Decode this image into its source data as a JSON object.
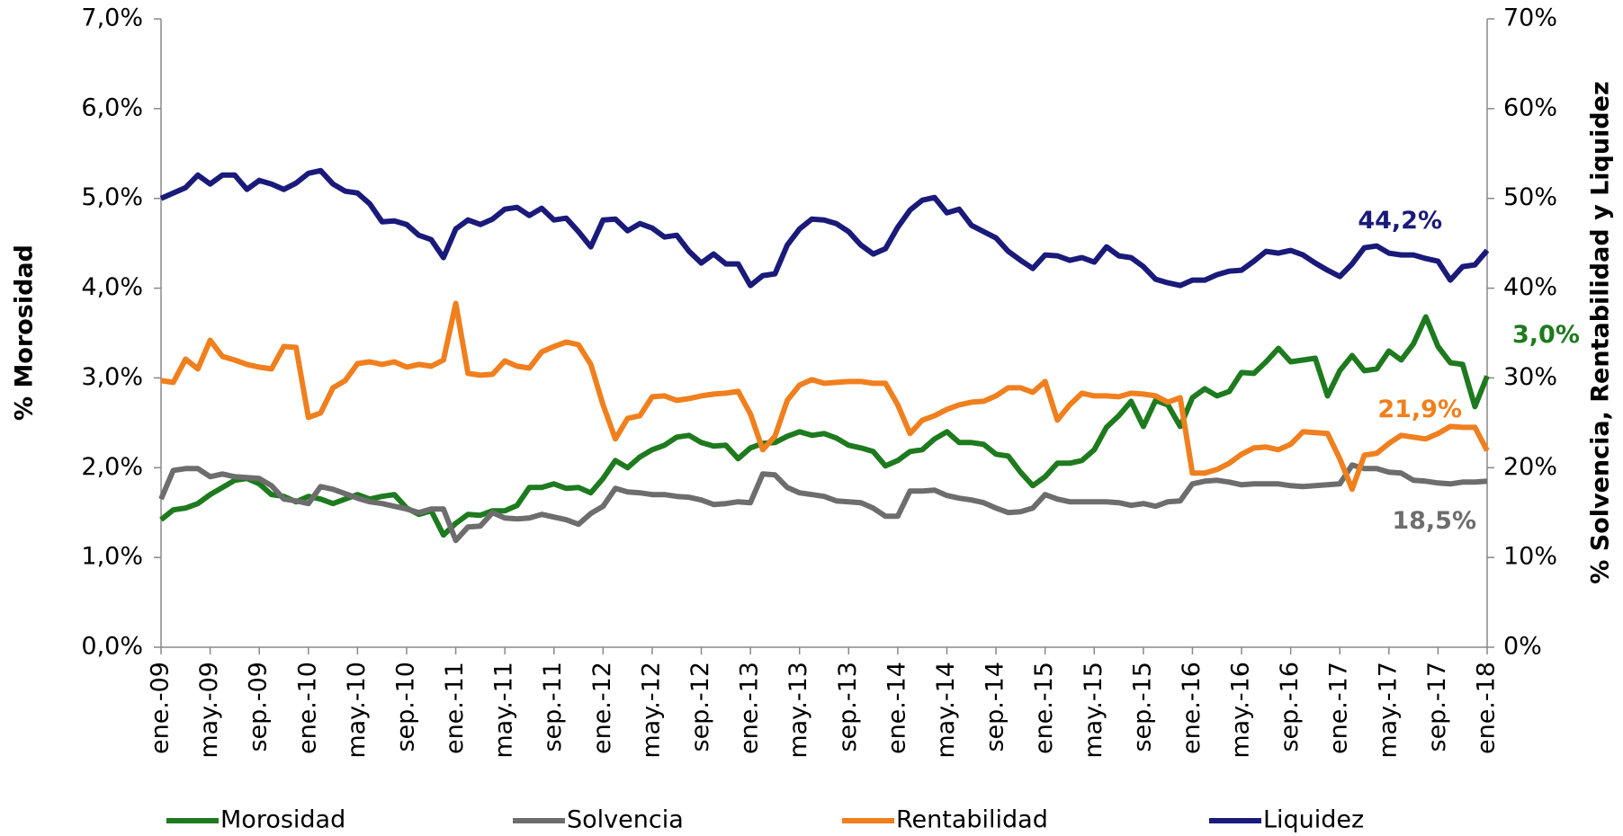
{
  "chart_data": {
    "type": "line",
    "y_label": "% Morosidad",
    "y2_label": "% Solvencia, Rentabilidad  y Liquidez",
    "categories": [
      "ene.-09",
      null,
      null,
      null,
      "may.-09",
      null,
      null,
      null,
      "sep.-09",
      null,
      null,
      null,
      "ene.-10",
      null,
      null,
      null,
      "may.-10",
      null,
      null,
      null,
      "sep.-10",
      null,
      null,
      null,
      "ene.-11",
      null,
      null,
      null,
      "may.-11",
      null,
      null,
      null,
      "sep.-11",
      null,
      null,
      null,
      "ene.-12",
      null,
      null,
      null,
      "may.-12",
      null,
      null,
      null,
      "sep.-12",
      null,
      null,
      null,
      "ene.-13",
      null,
      null,
      null,
      "may.-13",
      null,
      null,
      null,
      "sep.-13",
      null,
      null,
      null,
      "ene.-14",
      null,
      null,
      null,
      "may.-14",
      null,
      null,
      null,
      "sep.-14",
      null,
      null,
      null,
      "ene.-15",
      null,
      null,
      null,
      "may.-15",
      null,
      null,
      null,
      "sep.-15",
      null,
      null,
      null,
      "ene.-16",
      null,
      null,
      null,
      "may.-16",
      null,
      null,
      null,
      "sep.-16",
      null,
      null,
      null,
      "ene.-17",
      null,
      null,
      null,
      "may.-17",
      null,
      null,
      null,
      "sep.-17",
      null,
      null,
      null,
      "ene.-18"
    ],
    "ylim": [
      0,
      7
    ],
    "yticks": [
      {
        "value": 0,
        "label": "0,0%"
      },
      {
        "value": 1,
        "label": "1,0%"
      },
      {
        "value": 2,
        "label": "2,0%"
      },
      {
        "value": 3,
        "label": "3,0%"
      },
      {
        "value": 4,
        "label": "4,0%"
      },
      {
        "value": 5,
        "label": "5,0%"
      },
      {
        "value": 6,
        "label": "6,0%"
      },
      {
        "value": 7,
        "label": "7,0%"
      }
    ],
    "y2lim": [
      0,
      70
    ],
    "y2ticks": [
      {
        "value": 0,
        "label": "0%"
      },
      {
        "value": 10,
        "label": "10%"
      },
      {
        "value": 20,
        "label": "20%"
      },
      {
        "value": 30,
        "label": "30%"
      },
      {
        "value": 40,
        "label": "40%"
      },
      {
        "value": 50,
        "label": "50%"
      },
      {
        "value": 60,
        "label": "60%"
      },
      {
        "value": 70,
        "label": "70%"
      }
    ],
    "grid": false,
    "legend": "bottom",
    "series": [
      {
        "name": "Morosidad",
        "color": "#1e7a1e",
        "axis": "y",
        "values": [
          1.42,
          1.53,
          1.55,
          1.6,
          1.7,
          1.78,
          1.86,
          1.88,
          1.82,
          1.7,
          1.68,
          1.62,
          1.68,
          1.65,
          1.6,
          1.65,
          1.7,
          1.65,
          1.68,
          1.7,
          1.55,
          1.48,
          1.52,
          1.25,
          1.38,
          1.48,
          1.47,
          1.52,
          1.52,
          1.58,
          1.78,
          1.78,
          1.82,
          1.77,
          1.78,
          1.72,
          1.88,
          2.08,
          2.0,
          2.12,
          2.2,
          2.25,
          2.34,
          2.36,
          2.28,
          2.24,
          2.25,
          2.1,
          2.22,
          2.27,
          2.28,
          2.35,
          2.4,
          2.36,
          2.38,
          2.33,
          2.25,
          2.22,
          2.18,
          2.02,
          2.08,
          2.18,
          2.2,
          2.32,
          2.4,
          2.28,
          2.28,
          2.26,
          2.15,
          2.13,
          1.95,
          1.8,
          1.9,
          2.05,
          2.05,
          2.08,
          2.2,
          2.45,
          2.58,
          2.74,
          2.46,
          2.75,
          2.7,
          2.46,
          2.78,
          2.88,
          2.8,
          2.85,
          3.06,
          3.05,
          3.18,
          3.33,
          3.18,
          3.2,
          3.22,
          2.8,
          3.08,
          3.25,
          3.08,
          3.1,
          3.3,
          3.2,
          3.38,
          3.68,
          3.35,
          3.17,
          3.15,
          2.68,
          3.02
        ],
        "value_labels": [
          null,
          null,
          null,
          null,
          null,
          null,
          null,
          null,
          null,
          null,
          null,
          null,
          null,
          null,
          null,
          null,
          null,
          null,
          null,
          null,
          null,
          null,
          null,
          null,
          null,
          null,
          null,
          null,
          null,
          null,
          null,
          null,
          null,
          null,
          null,
          null,
          null,
          null,
          null,
          null,
          null,
          null,
          null,
          null,
          null,
          null,
          null,
          null,
          null,
          null,
          null,
          null,
          null,
          null,
          null,
          null,
          null,
          null,
          null,
          null,
          null,
          null,
          null,
          null,
          null,
          null,
          null,
          null,
          null,
          null,
          null,
          null,
          null,
          null,
          null,
          null,
          null,
          null,
          null,
          null,
          null,
          null,
          null,
          null,
          null,
          null,
          null,
          null,
          null,
          null,
          null,
          null,
          null,
          null,
          null,
          null,
          null,
          null,
          null,
          null,
          null,
          null,
          null,
          null,
          null,
          null,
          null,
          null,
          "3,0%"
        ]
      },
      {
        "name": "Solvencia",
        "color": "#6d6d6d",
        "axis": "y2",
        "values": [
          16.5,
          19.7,
          19.9,
          19.9,
          19.0,
          19.3,
          19.0,
          18.9,
          18.8,
          18.0,
          16.5,
          16.3,
          16.0,
          17.9,
          17.6,
          17.1,
          16.6,
          16.2,
          16.0,
          15.7,
          15.4,
          15.0,
          15.4,
          15.4,
          11.9,
          13.4,
          13.5,
          15.0,
          14.4,
          14.3,
          14.4,
          14.8,
          14.5,
          14.2,
          13.7,
          14.9,
          15.7,
          17.7,
          17.3,
          17.2,
          17.0,
          17.0,
          16.8,
          16.7,
          16.4,
          15.9,
          16.0,
          16.2,
          16.1,
          19.3,
          19.2,
          17.8,
          17.2,
          17.0,
          16.8,
          16.3,
          16.2,
          16.1,
          15.5,
          14.6,
          14.6,
          17.4,
          17.4,
          17.5,
          16.9,
          16.6,
          16.4,
          16.1,
          15.5,
          15.0,
          15.1,
          15.5,
          17.0,
          16.5,
          16.2,
          16.2,
          16.2,
          16.2,
          16.1,
          15.8,
          16.0,
          15.7,
          16.2,
          16.3,
          18.2,
          18.5,
          18.6,
          18.4,
          18.1,
          18.2,
          18.2,
          18.2,
          18.0,
          17.9,
          18.0,
          18.1,
          18.2,
          20.3,
          19.9,
          19.9,
          19.5,
          19.4,
          18.6,
          18.5,
          18.3,
          18.2,
          18.4,
          18.4,
          18.5
        ],
        "value_labels": [
          null,
          null,
          null,
          null,
          null,
          null,
          null,
          null,
          null,
          null,
          null,
          null,
          null,
          null,
          null,
          null,
          null,
          null,
          null,
          null,
          null,
          null,
          null,
          null,
          null,
          null,
          null,
          null,
          null,
          null,
          null,
          null,
          null,
          null,
          null,
          null,
          null,
          null,
          null,
          null,
          null,
          null,
          null,
          null,
          null,
          null,
          null,
          null,
          null,
          null,
          null,
          null,
          null,
          null,
          null,
          null,
          null,
          null,
          null,
          null,
          null,
          null,
          null,
          null,
          null,
          null,
          null,
          null,
          null,
          null,
          null,
          null,
          null,
          null,
          null,
          null,
          null,
          null,
          null,
          null,
          null,
          null,
          null,
          null,
          null,
          null,
          null,
          null,
          null,
          null,
          null,
          null,
          null,
          null,
          null,
          null,
          null,
          null,
          null,
          null,
          null,
          null,
          null,
          null,
          null,
          null,
          null,
          null,
          "18,5%"
        ]
      },
      {
        "name": "Rentabilidad",
        "color": "#f07f1e",
        "axis": "y2",
        "values": [
          29.7,
          29.5,
          32.1,
          31.0,
          34.2,
          32.4,
          32.0,
          31.5,
          31.2,
          31.0,
          33.5,
          33.4,
          25.6,
          26.1,
          28.9,
          29.7,
          31.6,
          31.8,
          31.5,
          31.8,
          31.2,
          31.5,
          31.3,
          32.0,
          38.3,
          30.5,
          30.3,
          30.4,
          31.9,
          31.3,
          31.1,
          32.9,
          33.5,
          34.0,
          33.7,
          31.5,
          27.0,
          23.2,
          25.5,
          25.8,
          27.9,
          28.0,
          27.5,
          27.7,
          28.0,
          28.2,
          28.3,
          28.5,
          26.0,
          22.0,
          23.5,
          27.5,
          29.2,
          29.8,
          29.4,
          29.5,
          29.6,
          29.6,
          29.4,
          29.4,
          27.0,
          23.8,
          25.3,
          25.8,
          26.5,
          27.0,
          27.3,
          27.4,
          28.0,
          28.9,
          28.9,
          28.4,
          29.6,
          25.3,
          27.0,
          28.3,
          28.0,
          28.0,
          27.9,
          28.3,
          28.2,
          28.0,
          27.3,
          27.8,
          19.4,
          19.4,
          19.8,
          20.5,
          21.5,
          22.2,
          22.3,
          22.0,
          22.6,
          24.0,
          23.9,
          23.8,
          21.0,
          17.6,
          21.4,
          21.6,
          22.7,
          23.6,
          23.4,
          23.2,
          23.8,
          24.6,
          24.5,
          24.5,
          21.9
        ],
        "value_labels": [
          null,
          null,
          null,
          null,
          null,
          null,
          null,
          null,
          null,
          null,
          null,
          null,
          null,
          null,
          null,
          null,
          null,
          null,
          null,
          null,
          null,
          null,
          null,
          null,
          null,
          null,
          null,
          null,
          null,
          null,
          null,
          null,
          null,
          null,
          null,
          null,
          null,
          null,
          null,
          null,
          null,
          null,
          null,
          null,
          null,
          null,
          null,
          null,
          null,
          null,
          null,
          null,
          null,
          null,
          null,
          null,
          null,
          null,
          null,
          null,
          null,
          null,
          null,
          null,
          null,
          null,
          null,
          null,
          null,
          null,
          null,
          null,
          null,
          null,
          null,
          null,
          null,
          null,
          null,
          null,
          null,
          null,
          null,
          null,
          null,
          null,
          null,
          null,
          null,
          null,
          null,
          null,
          null,
          null,
          null,
          null,
          null,
          null,
          null,
          null,
          null,
          null,
          null,
          null,
          null,
          null,
          null,
          null,
          "21,9%"
        ]
      },
      {
        "name": "Liquidez",
        "color": "#1a1a7a",
        "axis": "y2",
        "values": [
          50.0,
          50.6,
          51.2,
          52.6,
          51.6,
          52.6,
          52.6,
          51.0,
          52.0,
          51.6,
          51.0,
          51.7,
          52.8,
          53.1,
          51.6,
          50.8,
          50.6,
          49.4,
          47.4,
          47.5,
          47.1,
          45.9,
          45.4,
          43.4,
          46.6,
          47.6,
          47.1,
          47.7,
          48.8,
          49.0,
          48.1,
          48.9,
          47.6,
          47.8,
          46.3,
          44.6,
          47.6,
          47.7,
          46.4,
          47.2,
          46.7,
          45.7,
          45.9,
          44.1,
          42.8,
          43.8,
          42.7,
          42.7,
          40.3,
          41.4,
          41.6,
          44.8,
          46.6,
          47.7,
          47.6,
          47.2,
          46.3,
          44.8,
          43.8,
          44.4,
          46.8,
          48.7,
          49.8,
          50.1,
          48.4,
          48.8,
          47.0,
          46.3,
          45.6,
          44.1,
          43.1,
          42.2,
          43.7,
          43.6,
          43.1,
          43.4,
          42.9,
          44.6,
          43.6,
          43.4,
          42.4,
          41.0,
          40.6,
          40.3,
          40.9,
          40.9,
          41.5,
          41.9,
          42.0,
          43.0,
          44.1,
          43.9,
          44.2,
          43.7,
          42.8,
          42.0,
          41.3,
          42.7,
          44.5,
          44.7,
          43.9,
          43.7,
          43.7,
          43.3,
          43.0,
          40.9,
          42.4,
          42.6,
          44.2
        ],
        "value_labels": [
          null,
          null,
          null,
          null,
          null,
          null,
          null,
          null,
          null,
          null,
          null,
          null,
          null,
          null,
          null,
          null,
          null,
          null,
          null,
          null,
          null,
          null,
          null,
          null,
          null,
          null,
          null,
          null,
          null,
          null,
          null,
          null,
          null,
          null,
          null,
          null,
          null,
          null,
          null,
          null,
          null,
          null,
          null,
          null,
          null,
          null,
          null,
          null,
          null,
          null,
          null,
          null,
          null,
          null,
          null,
          null,
          null,
          null,
          null,
          null,
          null,
          null,
          null,
          null,
          null,
          null,
          null,
          null,
          null,
          null,
          null,
          null,
          null,
          null,
          null,
          null,
          null,
          null,
          null,
          null,
          null,
          null,
          null,
          null,
          null,
          null,
          null,
          null,
          null,
          null,
          null,
          null,
          null,
          null,
          null,
          null,
          null,
          null,
          null,
          null,
          null,
          null,
          null,
          null,
          null,
          null,
          null,
          null,
          "44,2%"
        ]
      }
    ]
  }
}
